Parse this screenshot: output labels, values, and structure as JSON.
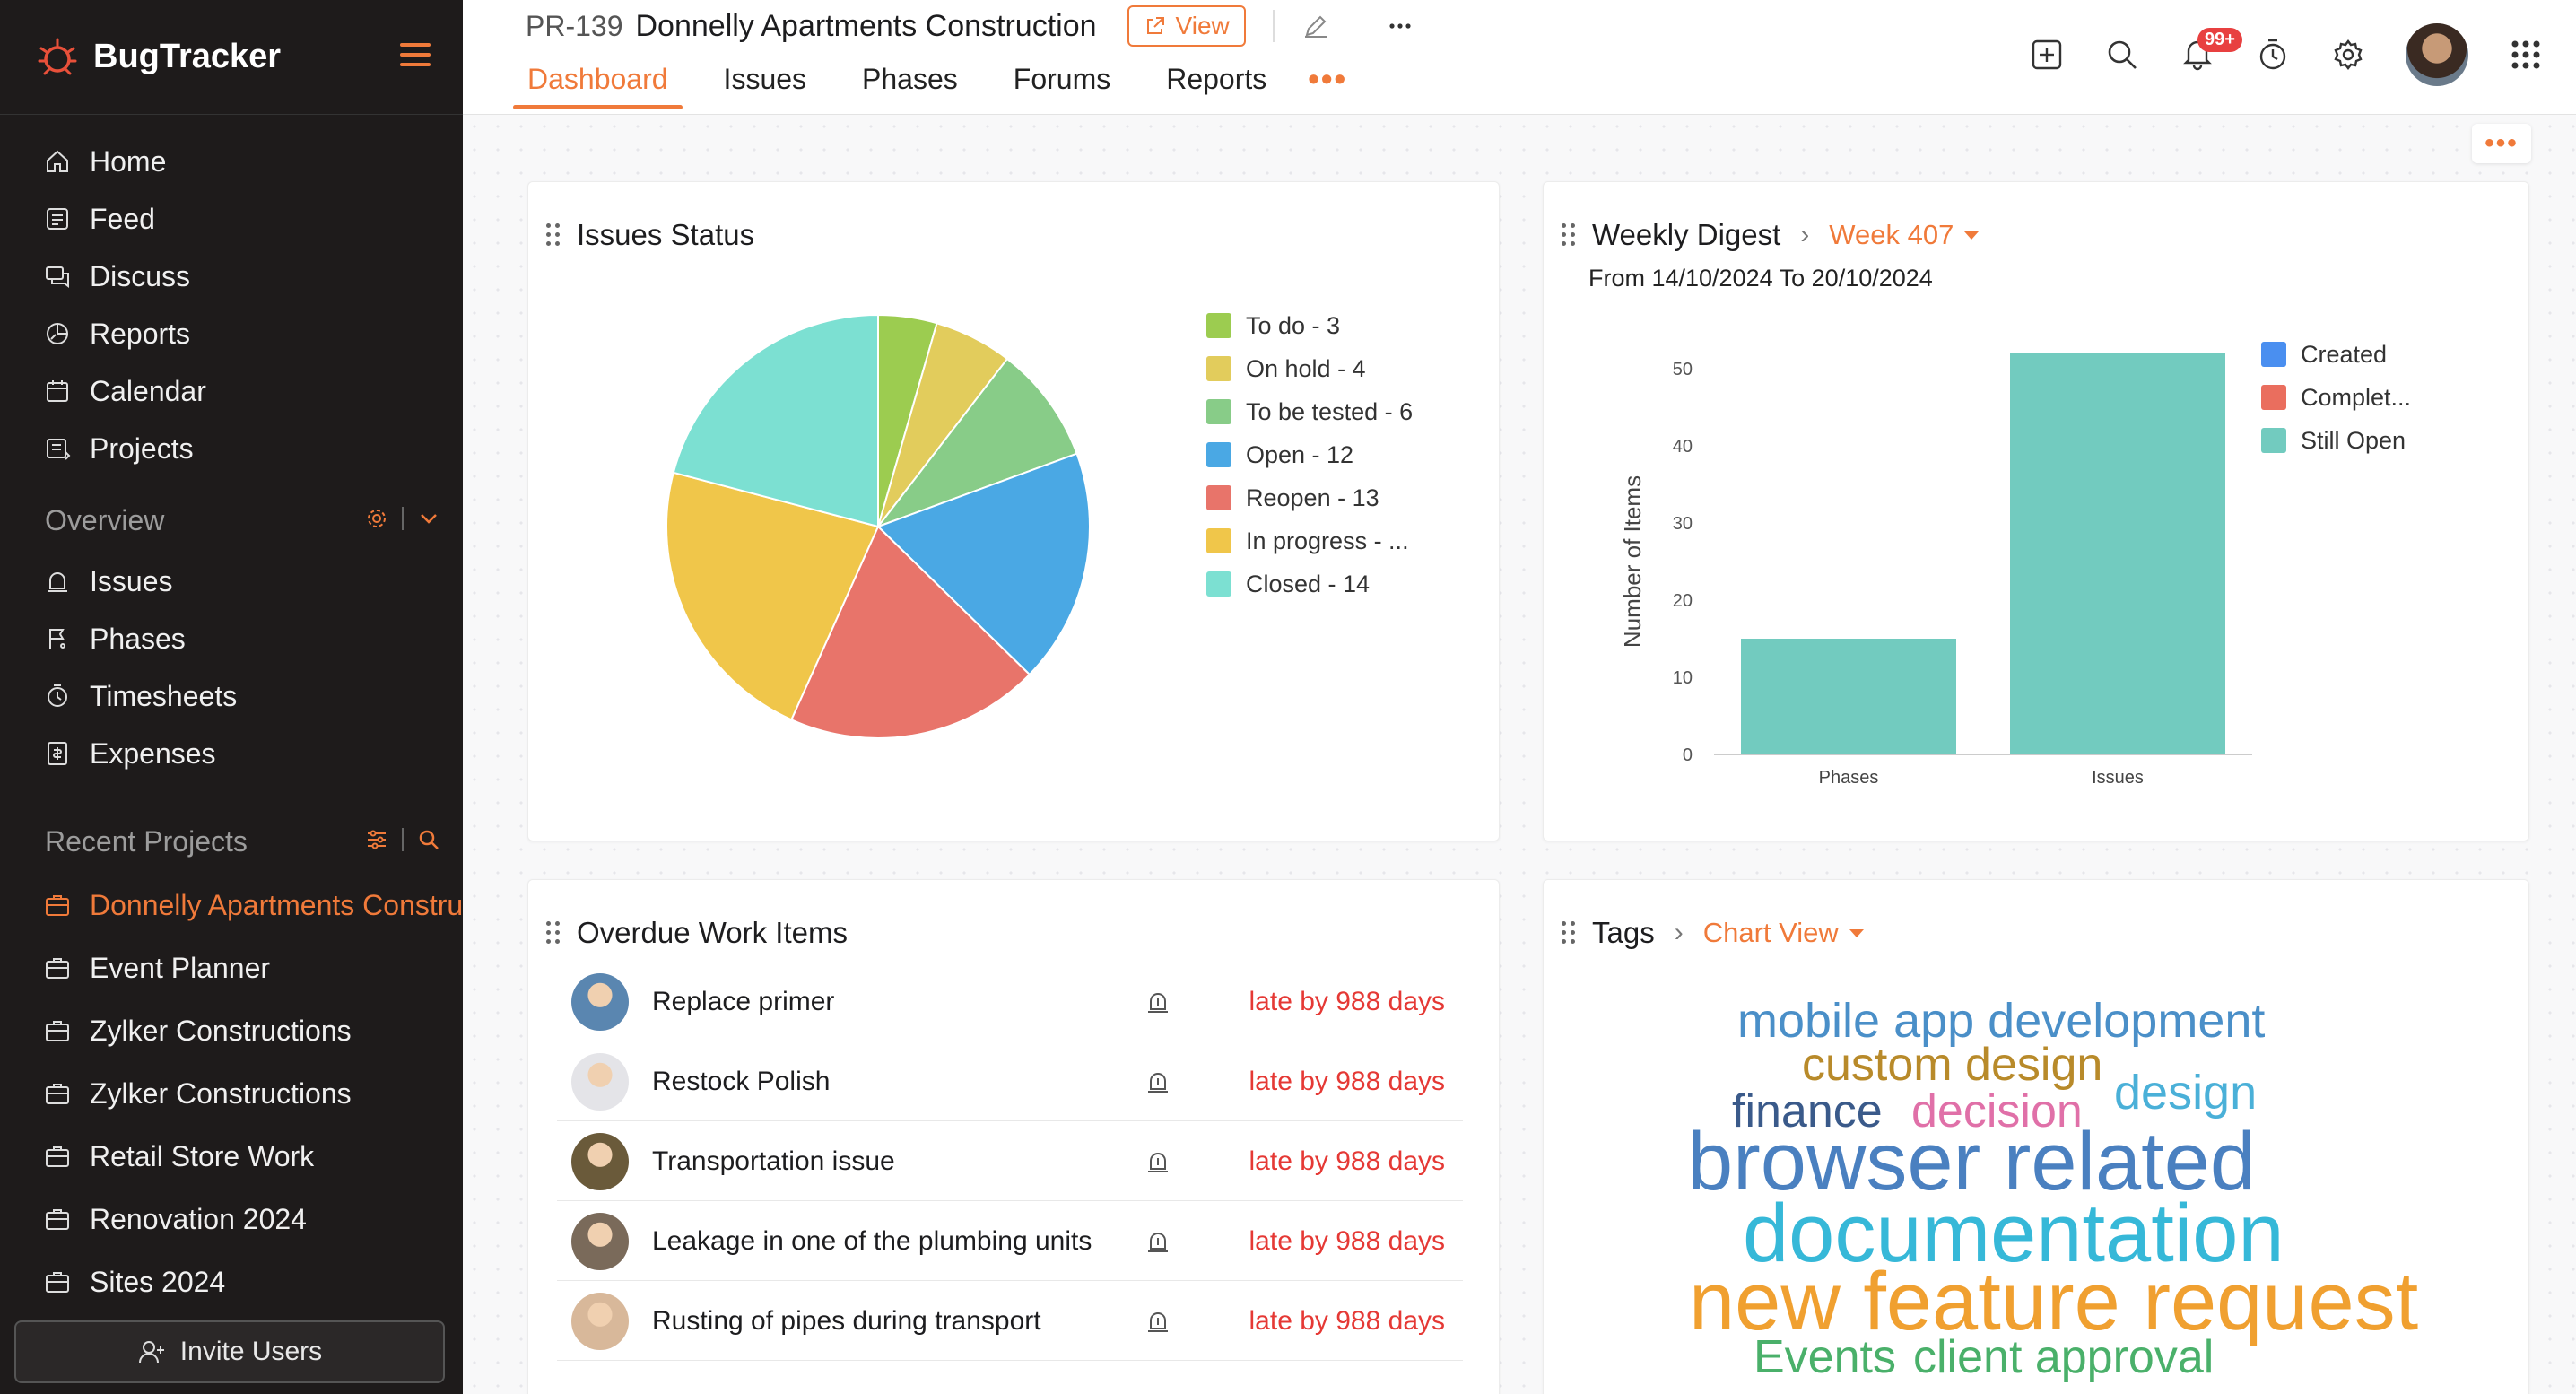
{
  "app": {
    "name": "BugTracker"
  },
  "sidebar": {
    "nav": [
      {
        "label": "Home",
        "icon": "home-icon"
      },
      {
        "label": "Feed",
        "icon": "feed-icon"
      },
      {
        "label": "Discuss",
        "icon": "discuss-icon"
      },
      {
        "label": "Reports",
        "icon": "reports-icon"
      },
      {
        "label": "Calendar",
        "icon": "calendar-icon"
      },
      {
        "label": "Projects",
        "icon": "projects-icon"
      }
    ],
    "overview": {
      "title": "Overview",
      "items": [
        {
          "label": "Issues",
          "icon": "bug-icon"
        },
        {
          "label": "Phases",
          "icon": "phases-icon"
        },
        {
          "label": "Timesheets",
          "icon": "timer-icon"
        },
        {
          "label": "Expenses",
          "icon": "expenses-icon"
        }
      ]
    },
    "recent": {
      "title": "Recent Projects",
      "items": [
        {
          "label": "Donnelly Apartments Construction",
          "active": true
        },
        {
          "label": "Event Planner"
        },
        {
          "label": "Zylker Constructions"
        },
        {
          "label": "Zylker Constructions"
        },
        {
          "label": "Retail Store Work"
        },
        {
          "label": "Renovation 2024"
        },
        {
          "label": "Sites 2024"
        }
      ]
    },
    "invite_label": "Invite Users"
  },
  "header": {
    "project_id": "PR-139",
    "project_name": "Donnelly Apartments Construction",
    "view_label": "View",
    "tabs": [
      {
        "label": "Dashboard",
        "active": true
      },
      {
        "label": "Issues"
      },
      {
        "label": "Phases"
      },
      {
        "label": "Forums"
      },
      {
        "label": "Reports"
      }
    ],
    "tab_more": "•••",
    "notification_badge": "99+"
  },
  "more_corner": "•••",
  "issues_status": {
    "title": "Issues Status",
    "chart_data": {
      "type": "pie",
      "slices": [
        {
          "label": "To do - 3",
          "value": 3,
          "color": "#9ccc50"
        },
        {
          "label": "On hold - 4",
          "value": 4,
          "color": "#e2cc5c"
        },
        {
          "label": "To be tested - 6",
          "value": 6,
          "color": "#88cc88"
        },
        {
          "label": "Open - 12",
          "value": 12,
          "color": "#4aa8e4"
        },
        {
          "label": "Reopen - 13",
          "value": 13,
          "color": "#e8746a"
        },
        {
          "label": "In progress - ...",
          "value": 15,
          "color": "#f0c64a"
        },
        {
          "label": "Closed - 14",
          "value": 14,
          "color": "#7ce0d2"
        }
      ]
    }
  },
  "weekly_digest": {
    "title": "Weekly Digest",
    "week_label": "Week 407",
    "range": "From 14/10/2024 To 20/10/2024",
    "chart_data": {
      "type": "bar",
      "categories": [
        "Phases",
        "Issues"
      ],
      "series": [
        {
          "name": "Created",
          "color": "#4a8ff0",
          "values": [
            0,
            0
          ]
        },
        {
          "name": "Complet...",
          "color": "#ea6e5e",
          "values": [
            0,
            0
          ]
        },
        {
          "name": "Still Open",
          "color": "#72cbbf",
          "values": [
            15,
            52
          ]
        }
      ],
      "ylabel": "Number of Items",
      "ylim": [
        0,
        50
      ],
      "yticks": [
        "0",
        "10",
        "20",
        "30",
        "40",
        "50"
      ]
    }
  },
  "overdue": {
    "title": "Overdue Work Items",
    "items": [
      {
        "title": "Replace primer",
        "late": "late by 988 days",
        "avatar": "#5a86b0"
      },
      {
        "title": "Restock Polish",
        "late": "late by 988 days",
        "avatar": "#e4e4e8"
      },
      {
        "title": "Transportation issue",
        "late": "late by 988 days",
        "avatar": "#6a5a3a"
      },
      {
        "title": "Leakage in one of the plumbing units",
        "late": "late by 988 days",
        "avatar": "#7a6a5a"
      },
      {
        "title": "Rusting of pipes during transport",
        "late": "late by 988 days",
        "avatar": "#d8b89a"
      }
    ]
  },
  "tags": {
    "title": "Tags",
    "view_label": "Chart View",
    "words": [
      {
        "text": "mobile app development",
        "color": "#4a8fc8"
      },
      {
        "text": "custom design",
        "color": "#b88a2a"
      },
      {
        "text": "design",
        "color": "#4ab0d8"
      },
      {
        "text": "finance",
        "color": "#3a5a8a"
      },
      {
        "text": "decision",
        "color": "#e070a8"
      },
      {
        "text": "browser related",
        "color": "#4a80c0"
      },
      {
        "text": "documentation",
        "color": "#36b8d8"
      },
      {
        "text": "new feature request",
        "color": "#f0a030"
      },
      {
        "text": "Events",
        "color": "#4ab06a"
      },
      {
        "text": "client approval",
        "color": "#4ab06a"
      }
    ]
  }
}
